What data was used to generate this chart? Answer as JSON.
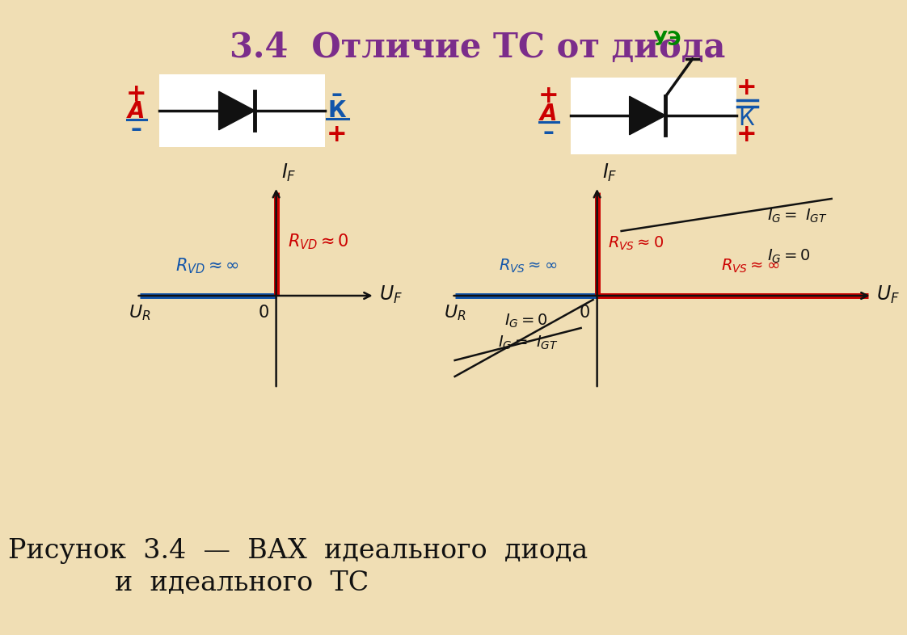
{
  "bg_color": "#f0deb4",
  "title": "3.4  Отличие ТС от диода",
  "title_color": "#7b2d8b",
  "title_fontsize": 30,
  "caption_line1": "Рисунок  3.4  —  ВАХ  идеального  диода",
  "caption_line2": "и  идеального  ТС",
  "caption_fontsize": 24,
  "red": "#cc0000",
  "blue": "#1155aa",
  "green": "#008800",
  "black": "#111111"
}
